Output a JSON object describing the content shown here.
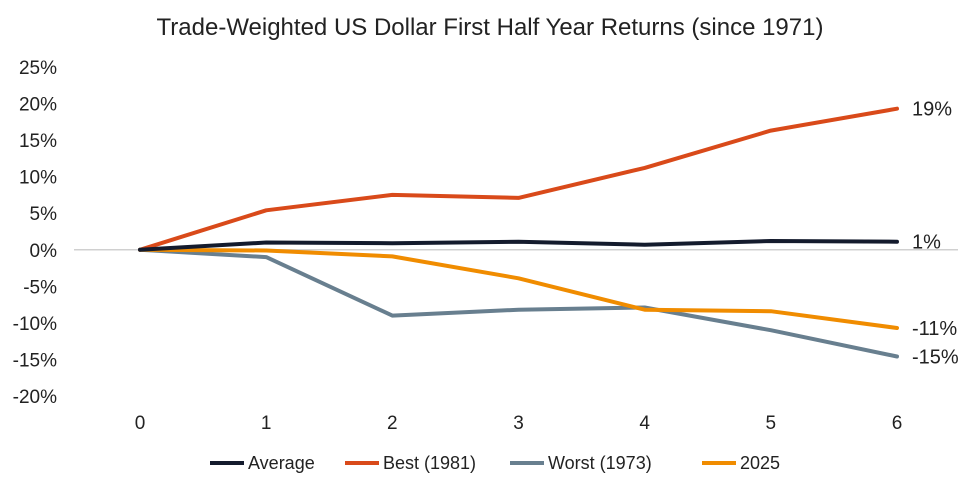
{
  "chart_data": {
    "type": "line",
    "title": "Trade-Weighted US Dollar First Half Year Returns (since 1971)",
    "xlabel": "",
    "ylabel": "",
    "x": [
      0,
      1,
      2,
      3,
      4,
      5,
      6
    ],
    "x_tick_labels": [
      "0",
      "1",
      "2",
      "3",
      "4",
      "5",
      "6"
    ],
    "ylim": [
      -20,
      25
    ],
    "y_ticks": [
      25,
      20,
      15,
      10,
      5,
      0,
      -5,
      -10,
      -15,
      -20
    ],
    "y_tick_labels": [
      "25%",
      "20%",
      "15%",
      "10%",
      "5%",
      "0%",
      "-5%",
      "-10%",
      "-15%",
      "-20%"
    ],
    "grid": false,
    "zero_line": true,
    "legend_position": "bottom",
    "series": [
      {
        "name": "Average",
        "color": "#141b2d",
        "values": [
          0,
          1.0,
          0.9,
          1.1,
          0.7,
          1.2,
          1.1
        ],
        "end_label": "1%"
      },
      {
        "name": "Best (1981)",
        "color": "#d94a1a",
        "values": [
          0,
          5.4,
          7.5,
          7.1,
          11.2,
          16.3,
          19.3
        ],
        "end_label": "19%"
      },
      {
        "name": "Worst (1973)",
        "color": "#687f8f",
        "values": [
          0,
          -1.0,
          -9.0,
          -8.2,
          -7.9,
          -11.0,
          -14.6
        ],
        "end_label": "-15%"
      },
      {
        "name": "2025",
        "color": "#f08c00",
        "values": [
          0,
          -0.1,
          -0.9,
          -3.9,
          -8.2,
          -8.4,
          -10.7
        ],
        "end_label": "-11%"
      }
    ]
  }
}
